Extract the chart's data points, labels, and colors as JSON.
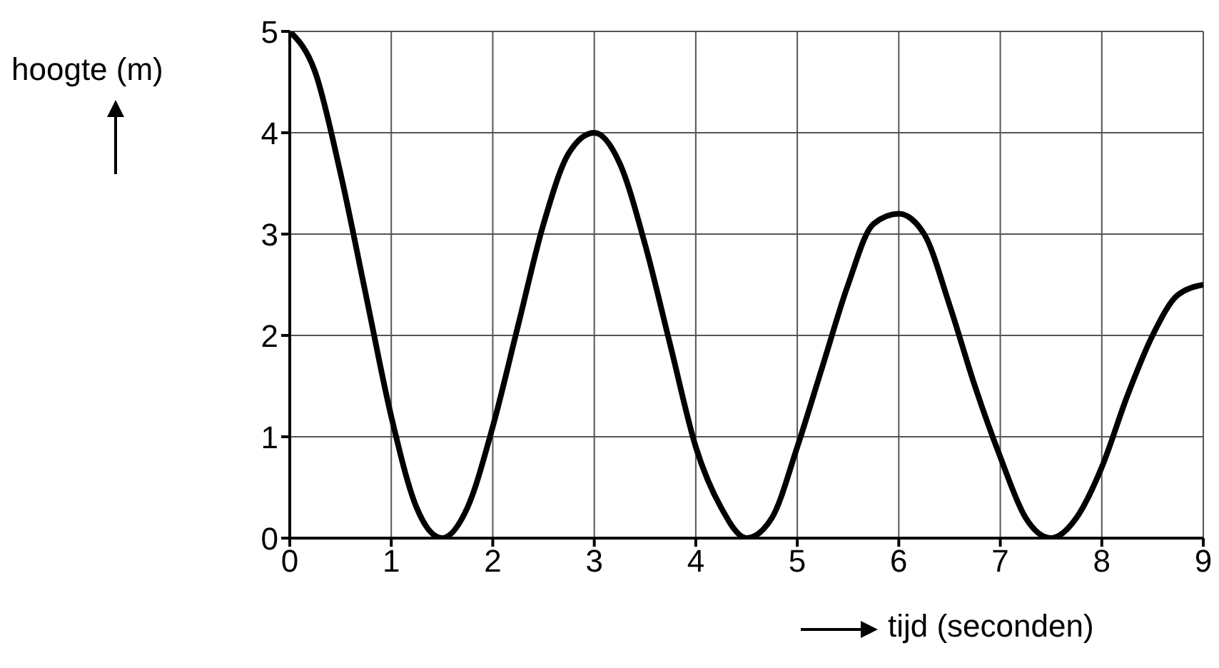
{
  "chart_data": {
    "type": "line",
    "xlabel": "tijd (seconden)",
    "ylabel": "hoogte (m)",
    "x": [
      0,
      0.25,
      0.5,
      0.75,
      1,
      1.25,
      1.5,
      1.75,
      2,
      2.25,
      2.5,
      2.75,
      3,
      3.25,
      3.5,
      3.75,
      4,
      4.25,
      4.5,
      4.75,
      5,
      5.25,
      5.5,
      5.75,
      6,
      6.25,
      6.5,
      6.75,
      7,
      7.25,
      7.5,
      7.75,
      8,
      8.25,
      8.5,
      8.75,
      9
    ],
    "series": [
      {
        "color": "#000000",
        "values": [
          5,
          4.6,
          3.6,
          2.4,
          1.2,
          0.3,
          0,
          0.3,
          1.1,
          2.1,
          3.1,
          3.8,
          4,
          3.7,
          2.9,
          1.9,
          0.9,
          0.3,
          0,
          0.2,
          0.9,
          1.7,
          2.5,
          3.1,
          3.2,
          3,
          2.3,
          1.5,
          0.8,
          0.2,
          0,
          0.2,
          0.7,
          1.4,
          2,
          2.4,
          2.5
        ]
      }
    ],
    "xlim": [
      0,
      9
    ],
    "xticks": [
      0,
      1,
      2,
      3,
      4,
      5,
      6,
      7,
      8,
      9
    ],
    "ylim": [
      0,
      5
    ],
    "yticks": [
      0,
      1,
      2,
      3,
      4,
      5
    ],
    "grid": true,
    "legend": false,
    "marker": "none",
    "line_style": "solid"
  }
}
